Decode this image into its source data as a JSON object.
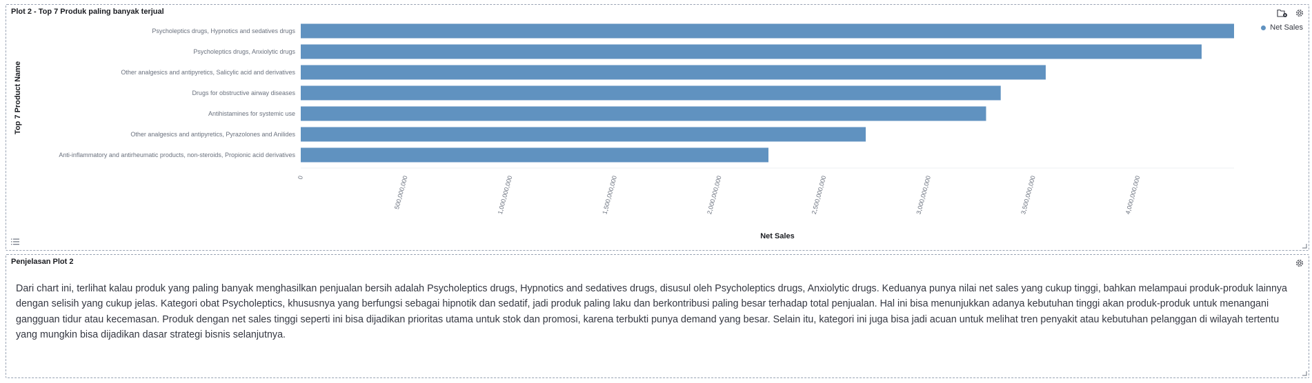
{
  "panel1": {
    "title": "Plot 2 - Top 7 Produk paling banyak terjual",
    "legend_label": "Net Sales"
  },
  "panel2": {
    "title": "Penjelasan Plot 2",
    "text": "Dari chart ini, terlihat kalau produk yang paling banyak menghasilkan penjualan bersih adalah Psycholeptics drugs, Hypnotics and sedatives drugs, disusul oleh Psycholeptics drugs, Anxiolytic drugs. Keduanya punya nilai net sales yang cukup tinggi, bahkan melampaui produk-produk lainnya dengan selisih yang cukup jelas. Kategori obat Psycholeptics, khususnya yang berfungsi sebagai hipnotik dan sedatif, jadi produk paling laku dan berkontribusi paling besar terhadap total penjualan. Hal ini bisa menunjukkan adanya kebutuhan tinggi akan produk-produk untuk menangani gangguan tidur atau kecemasan. Produk dengan net sales tinggi seperti ini bisa dijadikan prioritas utama untuk stok dan promosi, karena terbukti punya demand yang besar. Selain itu, kategori ini juga bisa jadi acuan untuk melihat tren penyakit atau kebutuhan pelanggan di wilayah tertentu yang mungkin bisa dijadikan dasar strategi bisnis selanjutnya."
  },
  "icons": {
    "gear": "gear-icon",
    "folder": "folder-settings-icon",
    "list": "list-icon",
    "resize": "resize-handle-icon"
  },
  "colors": {
    "bar": "#6092c0",
    "legend_dot": "#6092c0"
  },
  "chart_data": {
    "type": "bar",
    "orientation": "horizontal",
    "ylabel": "Top 7 Product Name",
    "xlabel": "Net Sales",
    "categories": [
      "Psycholeptics drugs, Hypnotics and sedatives drugs",
      "Psycholeptics drugs, Anxiolytic drugs",
      "Other analgesics and antipyretics, Salicylic acid and derivatives",
      "Drugs for obstructive airway diseases",
      "Antihistamines for systemic use",
      "Other analgesics and antipyretics, Pyrazolones and Anilides",
      "Anti-inflammatory and antirheumatic products, non-steroids, Propionic acid derivatives"
    ],
    "series": [
      {
        "name": "Net Sales",
        "values": [
          4460000000,
          4305000000,
          3560000000,
          3345000000,
          3275000000,
          2700000000,
          2235000000
        ]
      }
    ],
    "xticks": [
      "0",
      "500,000,000",
      "1,000,000,000",
      "1,500,000,000",
      "2,000,000,000",
      "2,500,000,000",
      "3,000,000,000",
      "3,500,000,000",
      "4,000,000,000"
    ],
    "xlim": [
      0,
      4460000000
    ],
    "legend": "top-right",
    "grid": false
  }
}
